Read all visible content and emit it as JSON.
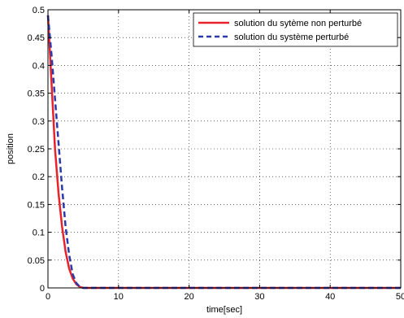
{
  "chart_data": {
    "type": "line",
    "title": "",
    "xlabel": "time[sec]",
    "ylabel": "position",
    "xlim": [
      0,
      50
    ],
    "ylim": [
      0,
      0.5
    ],
    "x_ticks": [
      "0",
      "10",
      "20",
      "30",
      "40",
      "50"
    ],
    "y_ticks": [
      "0",
      "0.05",
      "0.1",
      "0.15",
      "0.2",
      "0.25",
      "0.3",
      "0.35",
      "0.4",
      "0.45",
      "0.5"
    ],
    "grid": true,
    "legend_position": "top-right",
    "series": [
      {
        "name": "solution du sytème non perturbé",
        "color": "#e8222a",
        "style": "solid",
        "x": [
          0,
          0.25,
          0.5,
          0.75,
          1,
          1.5,
          2,
          2.5,
          3,
          3.5,
          4,
          4.5,
          5,
          6,
          8,
          50
        ],
        "y": [
          0.49,
          0.43,
          0.37,
          0.31,
          0.25,
          0.17,
          0.11,
          0.065,
          0.035,
          0.017,
          0.007,
          0.002,
          0,
          0,
          0,
          0
        ]
      },
      {
        "name": "solution du système perturbé",
        "color": "#2a3aa8",
        "style": "dashed",
        "x": [
          0,
          0.5,
          1,
          1.5,
          2,
          2.5,
          3,
          3.5,
          4,
          4.5,
          5,
          6,
          8,
          50
        ],
        "y": [
          0.49,
          0.42,
          0.34,
          0.26,
          0.18,
          0.11,
          0.06,
          0.025,
          0.009,
          0.002,
          0,
          0,
          0,
          0
        ]
      }
    ]
  }
}
